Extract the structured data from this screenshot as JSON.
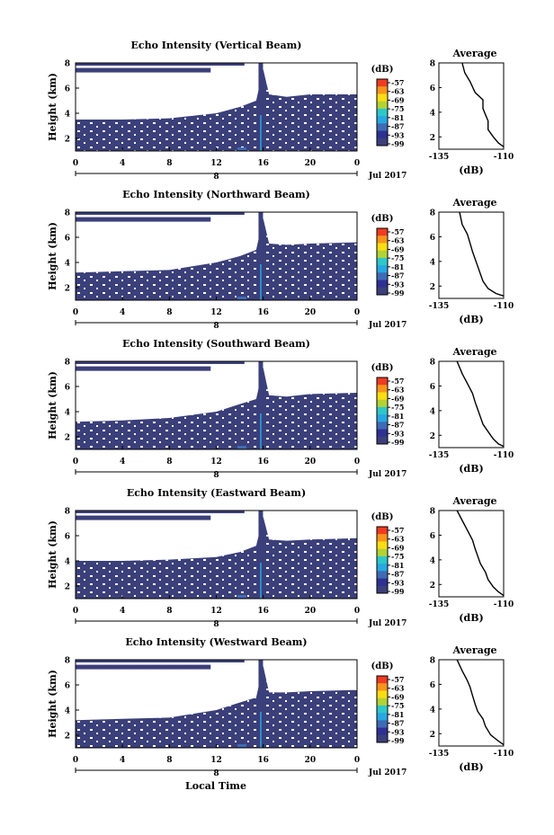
{
  "figure": {
    "xlabel": "Local Time",
    "date_label": "Jul 2017"
  },
  "colorbar": {
    "unit_label": "(dB)",
    "ticks": [
      "-57",
      "-63",
      "-69",
      "-75",
      "-81",
      "-87",
      "-93",
      "-99"
    ],
    "colors": [
      "#ef3b22",
      "#f7941e",
      "#fcdc13",
      "#b2d235",
      "#2fc7c9",
      "#27a8e0",
      "#3f6bb5",
      "#2e3192",
      "#3b3f7a"
    ]
  },
  "chart_data": [
    {
      "type": "heatmap",
      "title": "Echo Intensity (Vertical Beam)",
      "ylabel": "Height (km)",
      "xlim": [
        0,
        24
      ],
      "ylim": [
        1,
        8
      ],
      "xticks": [
        "0",
        "4",
        "8",
        "12",
        "16",
        "20",
        "0"
      ],
      "yticks": [
        "2",
        "4",
        "6",
        "8"
      ],
      "day_label": "8",
      "colorbar_range_db": [
        -99,
        -57
      ],
      "data_top_km": [
        [
          0,
          3.5
        ],
        [
          4,
          3.5
        ],
        [
          8,
          3.6
        ],
        [
          12,
          4.0
        ],
        [
          14,
          4.5
        ],
        [
          15.4,
          5.0
        ],
        [
          16,
          7.5
        ],
        [
          16.5,
          5.5
        ],
        [
          18,
          5.3
        ],
        [
          20,
          5.5
        ],
        [
          24,
          5.5
        ]
      ],
      "average_profile": {
        "title": "Average",
        "xlabel": "(dB)",
        "xticks": [
          "-135",
          "-110"
        ],
        "xlim": [
          -135,
          -110
        ],
        "yticks": [
          "2",
          "4",
          "6",
          "8"
        ],
        "ylim": [
          1,
          8
        ],
        "points": [
          [
            -126,
            8.0
          ],
          [
            -125,
            7.2
          ],
          [
            -123,
            6.5
          ],
          [
            -121,
            5.6
          ],
          [
            -118,
            5.0
          ],
          [
            -118,
            4.3
          ],
          [
            -117,
            3.8
          ],
          [
            -116,
            3.3
          ],
          [
            -116,
            2.6
          ],
          [
            -114,
            2.0
          ],
          [
            -112,
            1.5
          ],
          [
            -110,
            1.2
          ]
        ]
      }
    },
    {
      "type": "heatmap",
      "title": "Echo Intensity (Northward Beam)",
      "ylabel": "Height (km)",
      "xlim": [
        0,
        24
      ],
      "ylim": [
        1,
        8
      ],
      "xticks": [
        "0",
        "4",
        "8",
        "12",
        "16",
        "20",
        "0"
      ],
      "yticks": [
        "2",
        "4",
        "6",
        "8"
      ],
      "day_label": "8",
      "colorbar_range_db": [
        -99,
        -57
      ],
      "data_top_km": [
        [
          0,
          3.2
        ],
        [
          4,
          3.3
        ],
        [
          8,
          3.4
        ],
        [
          12,
          4.0
        ],
        [
          14,
          4.5
        ],
        [
          15.4,
          5.0
        ],
        [
          16,
          7.5
        ],
        [
          16.5,
          5.5
        ],
        [
          18,
          5.4
        ],
        [
          20,
          5.5
        ],
        [
          24,
          5.6
        ]
      ],
      "average_profile": {
        "title": "Average",
        "xlabel": "(dB)",
        "xticks": [
          "-135",
          "-110"
        ],
        "xlim": [
          -135,
          -110
        ],
        "yticks": [
          "2",
          "4",
          "6",
          "8"
        ],
        "ylim": [
          1,
          8
        ],
        "points": [
          [
            -127,
            8.0
          ],
          [
            -126,
            7.0
          ],
          [
            -124,
            6.2
          ],
          [
            -123,
            5.5
          ],
          [
            -122,
            4.8
          ],
          [
            -121,
            4.2
          ],
          [
            -120,
            3.6
          ],
          [
            -119,
            3.0
          ],
          [
            -118,
            2.4
          ],
          [
            -116,
            1.8
          ],
          [
            -113,
            1.4
          ],
          [
            -110,
            1.2
          ]
        ]
      }
    },
    {
      "type": "heatmap",
      "title": "Echo Intensity (Southward Beam)",
      "ylabel": "Height (km)",
      "xlim": [
        0,
        24
      ],
      "ylim": [
        1,
        8
      ],
      "xticks": [
        "0",
        "4",
        "8",
        "12",
        "16",
        "20",
        "0"
      ],
      "yticks": [
        "2",
        "4",
        "6",
        "8"
      ],
      "day_label": "8",
      "colorbar_range_db": [
        -99,
        -57
      ],
      "data_top_km": [
        [
          0,
          3.2
        ],
        [
          4,
          3.3
        ],
        [
          8,
          3.5
        ],
        [
          12,
          4.0
        ],
        [
          14,
          4.6
        ],
        [
          15.4,
          5.0
        ],
        [
          16,
          7.5
        ],
        [
          16.5,
          5.3
        ],
        [
          18,
          5.2
        ],
        [
          20,
          5.4
        ],
        [
          24,
          5.5
        ]
      ],
      "average_profile": {
        "title": "Average",
        "xlabel": "(dB)",
        "xticks": [
          "-135",
          "-110"
        ],
        "xlim": [
          -135,
          -110
        ],
        "yticks": [
          "2",
          "4",
          "6",
          "8"
        ],
        "ylim": [
          1,
          8
        ],
        "points": [
          [
            -128,
            8.0
          ],
          [
            -126,
            7.0
          ],
          [
            -124,
            6.2
          ],
          [
            -122,
            5.4
          ],
          [
            -121,
            4.7
          ],
          [
            -120,
            4.1
          ],
          [
            -119,
            3.5
          ],
          [
            -118,
            2.9
          ],
          [
            -116,
            2.3
          ],
          [
            -114,
            1.7
          ],
          [
            -112,
            1.3
          ],
          [
            -110,
            1.1
          ]
        ]
      }
    },
    {
      "type": "heatmap",
      "title": "Echo Intensity (Eastward Beam)",
      "ylabel": "Height (km)",
      "xlim": [
        0,
        24
      ],
      "ylim": [
        1,
        8
      ],
      "xticks": [
        "0",
        "4",
        "8",
        "12",
        "16",
        "20",
        "0"
      ],
      "yticks": [
        "2",
        "4",
        "6",
        "8"
      ],
      "day_label": "8",
      "colorbar_range_db": [
        -99,
        -57
      ],
      "data_top_km": [
        [
          0,
          4.0
        ],
        [
          4,
          4.0
        ],
        [
          8,
          4.1
        ],
        [
          12,
          4.3
        ],
        [
          14,
          4.7
        ],
        [
          15.4,
          5.2
        ],
        [
          16,
          7.5
        ],
        [
          16.5,
          5.7
        ],
        [
          18,
          5.6
        ],
        [
          20,
          5.7
        ],
        [
          24,
          5.8
        ]
      ],
      "average_profile": {
        "title": "Average",
        "xlabel": "(dB)",
        "xticks": [
          "-135",
          "-110"
        ],
        "xlim": [
          -135,
          -110
        ],
        "yticks": [
          "2",
          "4",
          "6",
          "8"
        ],
        "ylim": [
          1,
          8
        ],
        "points": [
          [
            -128,
            8.0
          ],
          [
            -126,
            7.2
          ],
          [
            -124,
            6.4
          ],
          [
            -122,
            5.6
          ],
          [
            -121,
            4.9
          ],
          [
            -120,
            4.3
          ],
          [
            -119,
            3.7
          ],
          [
            -117,
            3.0
          ],
          [
            -116,
            2.4
          ],
          [
            -114,
            1.8
          ],
          [
            -112,
            1.4
          ],
          [
            -110,
            1.1
          ]
        ]
      }
    },
    {
      "type": "heatmap",
      "title": "Echo Intensity (Westward Beam)",
      "ylabel": "Height (km)",
      "xlim": [
        0,
        24
      ],
      "ylim": [
        1,
        8
      ],
      "xticks": [
        "0",
        "4",
        "8",
        "12",
        "16",
        "20",
        "0"
      ],
      "yticks": [
        "2",
        "4",
        "6",
        "8"
      ],
      "day_label": "8",
      "colorbar_range_db": [
        -99,
        -57
      ],
      "data_top_km": [
        [
          0,
          3.2
        ],
        [
          4,
          3.3
        ],
        [
          8,
          3.4
        ],
        [
          12,
          4.0
        ],
        [
          14,
          4.6
        ],
        [
          15.4,
          5.0
        ],
        [
          16,
          7.5
        ],
        [
          16.5,
          5.4
        ],
        [
          18,
          5.4
        ],
        [
          20,
          5.5
        ],
        [
          24,
          5.6
        ]
      ],
      "average_profile": {
        "title": "Average",
        "xlabel": "(dB)",
        "xticks": [
          "-135",
          "-110"
        ],
        "xlim": [
          -135,
          -110
        ],
        "yticks": [
          "2",
          "4",
          "6",
          "8"
        ],
        "ylim": [
          1,
          8
        ],
        "points": [
          [
            -128,
            8.0
          ],
          [
            -126,
            7.1
          ],
          [
            -124,
            6.3
          ],
          [
            -123,
            5.8
          ],
          [
            -122,
            5.1
          ],
          [
            -121,
            4.4
          ],
          [
            -120,
            3.8
          ],
          [
            -118,
            3.2
          ],
          [
            -117,
            2.6
          ],
          [
            -115,
            1.9
          ],
          [
            -112,
            1.4
          ],
          [
            -110,
            1.1
          ]
        ]
      }
    }
  ]
}
